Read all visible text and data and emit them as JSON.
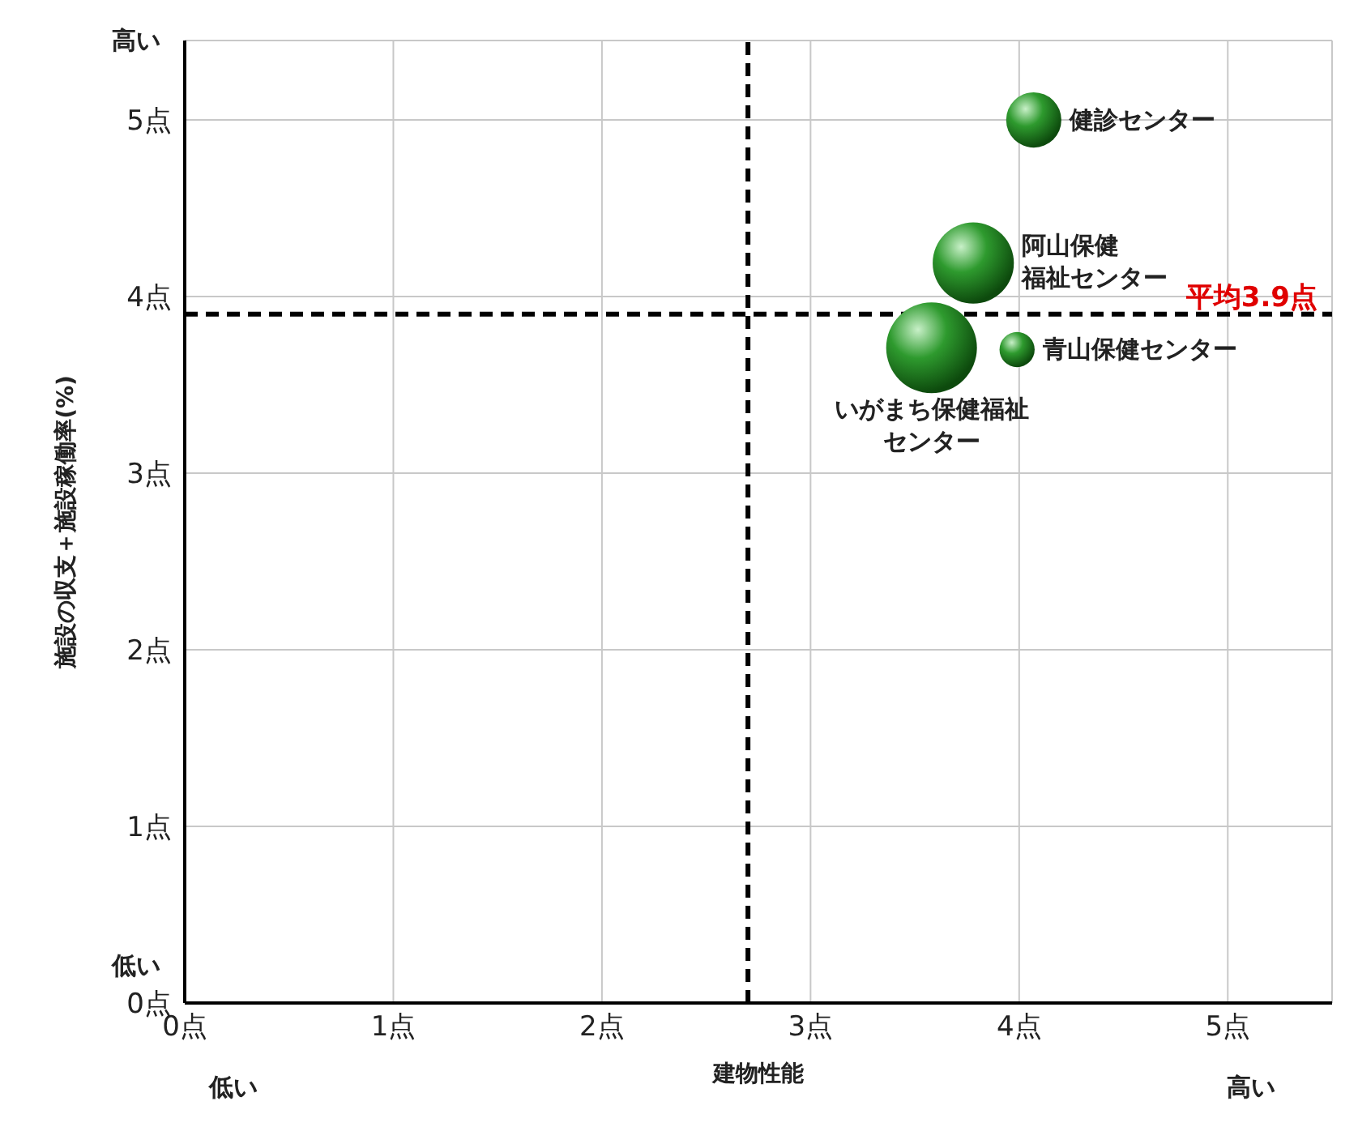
{
  "chart_data": {
    "type": "bubble",
    "xlabel": "建物性能",
    "ylabel": "施設の収支＋施設稼働率(%)",
    "xlim": [
      0,
      5.5
    ],
    "ylim": [
      0,
      5.45
    ],
    "xticks": [
      {
        "value": 0,
        "label": "0点"
      },
      {
        "value": 1,
        "label": "1点"
      },
      {
        "value": 2,
        "label": "2点"
      },
      {
        "value": 3,
        "label": "3点"
      },
      {
        "value": 4,
        "label": "4点"
      },
      {
        "value": 5,
        "label": "5点"
      }
    ],
    "yticks": [
      {
        "value": 0,
        "label": "0点"
      },
      {
        "value": 1,
        "label": "1点"
      },
      {
        "value": 2,
        "label": "2点"
      },
      {
        "value": 3,
        "label": "3点"
      },
      {
        "value": 4,
        "label": "4点"
      },
      {
        "value": 5,
        "label": "5点"
      }
    ],
    "grid": true,
    "legend": false,
    "series": [
      {
        "name": "健診センター",
        "color": "#2e9a2e",
        "x": [
          4.07
        ],
        "values": [
          5.0
        ],
        "sizes": [
          0.37
        ]
      },
      {
        "name": "阿山保健福祉センター",
        "color": "#2e9a2e",
        "x": [
          3.78
        ],
        "values": [
          4.19
        ],
        "sizes": [
          0.8
        ]
      },
      {
        "name": "青山保健センター",
        "color": "#2e9a2e",
        "x": [
          3.99
        ],
        "values": [
          3.7
        ],
        "sizes": [
          0.15
        ]
      },
      {
        "name": "いがまち保健福祉センター",
        "color": "#2e9a2e",
        "x": [
          3.58
        ],
        "values": [
          3.71
        ],
        "sizes": [
          1
        ]
      }
    ],
    "ref_lines": [
      {
        "axis": "x",
        "value": 2.7,
        "line_style": "dashed",
        "color": "#000000"
      },
      {
        "axis": "y",
        "value": 3.9,
        "label": "平均3.9点",
        "line_style": "dashed",
        "color": "#000000"
      }
    ],
    "annotations": [
      "高い",
      "低い",
      "低い",
      "高い"
    ]
  }
}
